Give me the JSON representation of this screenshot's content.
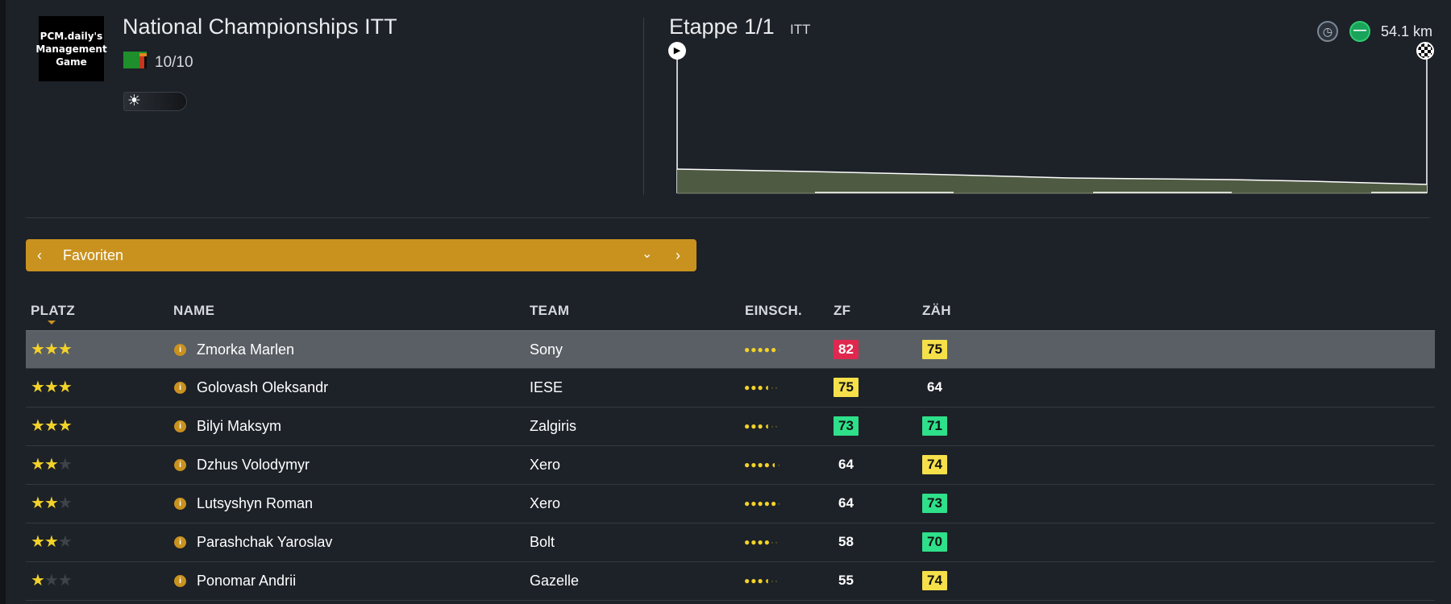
{
  "header": {
    "logo_text": "PCM.daily's Management Game",
    "race_title": "National Championships ITT",
    "rating": "10/10",
    "stage_label": "Etappe 1/1",
    "stage_type": "ITT",
    "distance": "54.1 km",
    "icons": {
      "flag": "zambia-flag-icon",
      "weather": "sun-weather-icon",
      "clock": "clock-icon",
      "terrain": "flat-terrain-icon",
      "start": "play-start-icon",
      "finish": "checkered-finish-icon"
    }
  },
  "favorites_bar": {
    "label": "Favoriten",
    "color": "#c9921f"
  },
  "table": {
    "columns": {
      "platz": "PLATZ",
      "name": "NAME",
      "team": "TEAM",
      "einsch": "EINSCH.",
      "zf": "ZF",
      "zah": "ZÄH"
    },
    "rows": [
      {
        "stars": 3,
        "name": "Zmorka Marlen",
        "team": "Sony",
        "einsch": 5,
        "zf": "82",
        "zf_color": "red",
        "zah": "75",
        "zah_color": "yellow",
        "selected": true
      },
      {
        "stars": 3,
        "name": "Golovash Oleksandr",
        "team": "IESE",
        "einsch": 3.5,
        "zf": "75",
        "zf_color": "yellow",
        "zah": "64",
        "zah_color": "plain",
        "selected": false
      },
      {
        "stars": 3,
        "name": "Bilyi Maksym",
        "team": "Zalgiris",
        "einsch": 3.5,
        "zf": "73",
        "zf_color": "green",
        "zah": "71",
        "zah_color": "green",
        "selected": false
      },
      {
        "stars": 2,
        "name": "Dzhus Volodymyr",
        "team": "Xero",
        "einsch": 4.5,
        "zf": "64",
        "zf_color": "plain",
        "zah": "74",
        "zah_color": "yellow",
        "selected": false
      },
      {
        "stars": 2,
        "name": "Lutsyshyn Roman",
        "team": "Xero",
        "einsch": 5,
        "zf": "64",
        "zf_color": "plain",
        "zah": "73",
        "zah_color": "green",
        "selected": false
      },
      {
        "stars": 2,
        "name": "Parashchak Yaroslav",
        "team": "Bolt",
        "einsch": 4,
        "zf": "58",
        "zf_color": "plain",
        "zah": "70",
        "zah_color": "green",
        "selected": false
      },
      {
        "stars": 1,
        "name": "Ponomar Andrii",
        "team": "Gazelle",
        "einsch": 3.5,
        "zf": "55",
        "zf_color": "plain",
        "zah": "74",
        "zah_color": "yellow",
        "selected": false
      }
    ]
  }
}
